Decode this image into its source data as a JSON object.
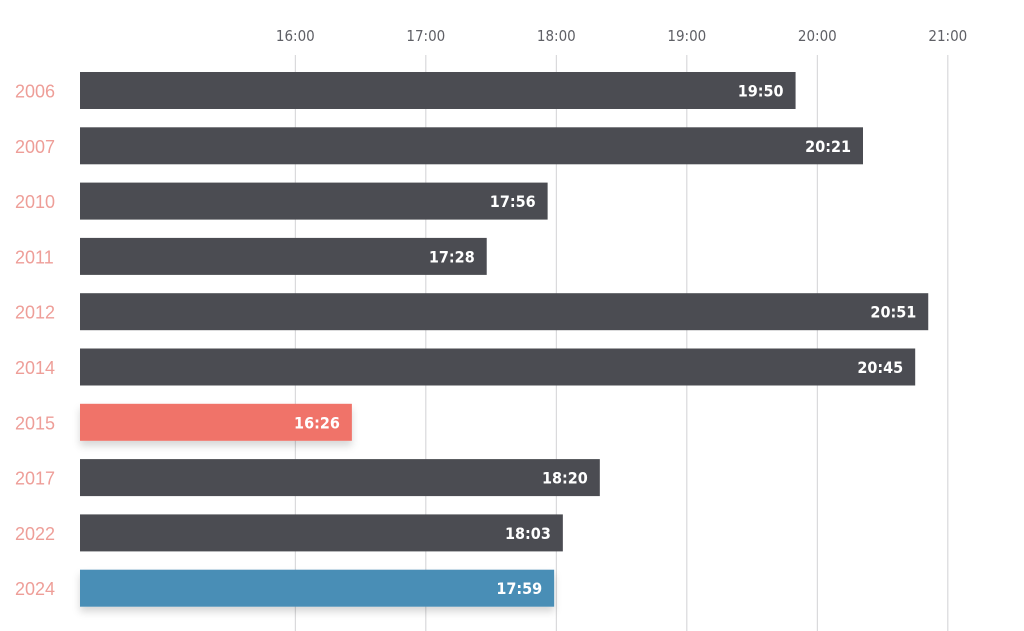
{
  "chart_data": {
    "type": "bar",
    "orientation": "horizontal",
    "title": "",
    "xlabel": "",
    "ylabel": "",
    "x_ticks": [
      "16:00",
      "17:00",
      "18:00",
      "19:00",
      "20:00",
      "21:00"
    ],
    "xlim": [
      "14:21",
      "21:00"
    ],
    "grid": true,
    "categories": [
      "2006",
      "2007",
      "2010",
      "2011",
      "2012",
      "2014",
      "2015",
      "2017",
      "2022",
      "2024"
    ],
    "values": [
      "19:50",
      "20:21",
      "17:56",
      "17:28",
      "20:51",
      "20:45",
      "16:26",
      "18:20",
      "18:03",
      "17:59"
    ],
    "colors": {
      "default_bar": "#4b4c52",
      "highlight_2015": "#f07369",
      "highlight_2024": "#4a8eb6",
      "year_label": "#ee9e98",
      "value_label": "#ffffff",
      "tick_label": "#5f6066",
      "gridline": "#d2d2d4"
    },
    "highlights": {
      "2015": "highlight_2015",
      "2024": "highlight_2024"
    }
  }
}
